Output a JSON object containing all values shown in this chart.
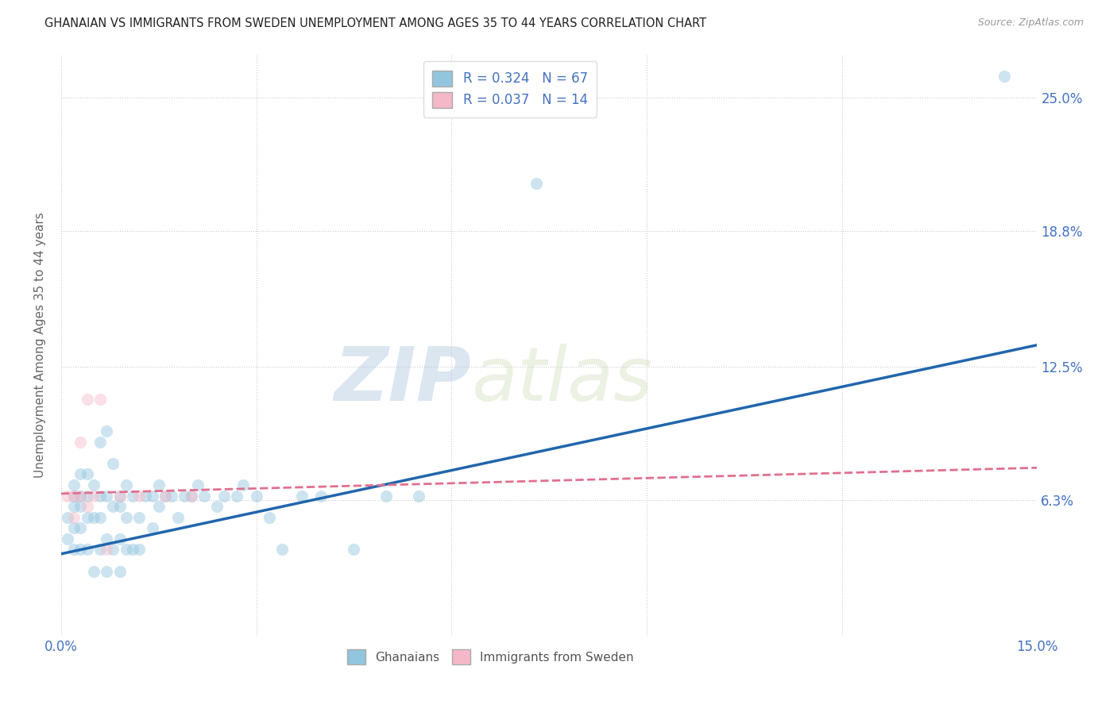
{
  "title": "GHANAIAN VS IMMIGRANTS FROM SWEDEN UNEMPLOYMENT AMONG AGES 35 TO 44 YEARS CORRELATION CHART",
  "source": "Source: ZipAtlas.com",
  "ylabel": "Unemployment Among Ages 35 to 44 years",
  "xlim": [
    0.0,
    0.15
  ],
  "ylim": [
    0.0,
    0.27
  ],
  "ytick_labels": [
    "6.3%",
    "12.5%",
    "18.8%",
    "25.0%"
  ],
  "ytick_values": [
    0.063,
    0.125,
    0.188,
    0.25
  ],
  "xtick_labels": [
    "0.0%",
    "",
    "",
    "",
    "",
    "15.0%"
  ],
  "xtick_values": [
    0.0,
    0.03,
    0.06,
    0.09,
    0.12,
    0.15
  ],
  "background_color": "#ffffff",
  "watermark_zip": "ZIP",
  "watermark_atlas": "atlas",
  "legend_blue_r": "0.324",
  "legend_blue_n": "67",
  "legend_pink_r": "0.037",
  "legend_pink_n": "14",
  "blue_scatter_x": [
    0.001,
    0.001,
    0.002,
    0.002,
    0.002,
    0.002,
    0.002,
    0.003,
    0.003,
    0.003,
    0.003,
    0.003,
    0.004,
    0.004,
    0.004,
    0.004,
    0.005,
    0.005,
    0.005,
    0.006,
    0.006,
    0.006,
    0.006,
    0.007,
    0.007,
    0.007,
    0.007,
    0.008,
    0.008,
    0.008,
    0.009,
    0.009,
    0.009,
    0.009,
    0.01,
    0.01,
    0.01,
    0.011,
    0.011,
    0.012,
    0.012,
    0.013,
    0.014,
    0.014,
    0.015,
    0.015,
    0.016,
    0.017,
    0.018,
    0.019,
    0.02,
    0.021,
    0.022,
    0.024,
    0.025,
    0.027,
    0.028,
    0.03,
    0.032,
    0.034,
    0.037,
    0.04,
    0.045,
    0.05,
    0.055,
    0.073,
    0.145
  ],
  "blue_scatter_y": [
    0.045,
    0.055,
    0.04,
    0.05,
    0.06,
    0.065,
    0.07,
    0.04,
    0.05,
    0.06,
    0.065,
    0.075,
    0.04,
    0.055,
    0.065,
    0.075,
    0.03,
    0.055,
    0.07,
    0.04,
    0.055,
    0.065,
    0.09,
    0.03,
    0.045,
    0.065,
    0.095,
    0.04,
    0.06,
    0.08,
    0.03,
    0.045,
    0.06,
    0.065,
    0.04,
    0.055,
    0.07,
    0.04,
    0.065,
    0.04,
    0.055,
    0.065,
    0.05,
    0.065,
    0.06,
    0.07,
    0.065,
    0.065,
    0.055,
    0.065,
    0.065,
    0.07,
    0.065,
    0.06,
    0.065,
    0.065,
    0.07,
    0.065,
    0.055,
    0.04,
    0.065,
    0.065,
    0.04,
    0.065,
    0.065,
    0.21,
    0.26
  ],
  "pink_scatter_x": [
    0.001,
    0.002,
    0.002,
    0.003,
    0.003,
    0.004,
    0.004,
    0.005,
    0.006,
    0.007,
    0.009,
    0.012,
    0.016,
    0.02
  ],
  "pink_scatter_y": [
    0.065,
    0.055,
    0.065,
    0.065,
    0.09,
    0.06,
    0.11,
    0.065,
    0.11,
    0.04,
    0.065,
    0.065,
    0.065,
    0.065
  ],
  "blue_line_x": [
    0.0,
    0.15
  ],
  "blue_line_y": [
    0.038,
    0.135
  ],
  "pink_line_x": [
    0.0,
    0.15
  ],
  "pink_line_y": [
    0.066,
    0.078
  ],
  "blue_color": "#92c5de",
  "pink_color": "#f4b8c8",
  "blue_line_color": "#2166ac",
  "pink_line_color": "#e07090",
  "dot_size": 120,
  "dot_alpha": 0.45
}
